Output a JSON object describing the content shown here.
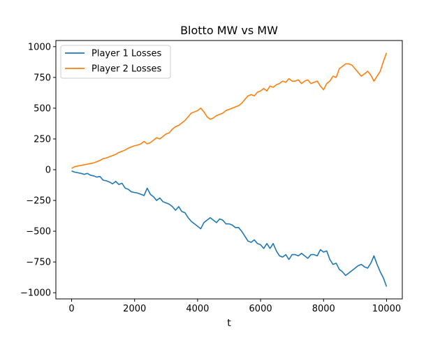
{
  "chart_data": {
    "type": "line",
    "title": "Blotto MW vs MW",
    "xlabel": "t",
    "ylabel": "",
    "xlim": [
      -500,
      10500
    ],
    "ylim": [
      -1050,
      1050
    ],
    "xticks": [
      0,
      2000,
      4000,
      6000,
      8000,
      10000
    ],
    "xtick_labels": [
      "0",
      "2000",
      "4000",
      "6000",
      "8000",
      "10000"
    ],
    "yticks": [
      -1000,
      -750,
      -500,
      -250,
      0,
      250,
      500,
      750,
      1000
    ],
    "ytick_labels": [
      "−1000",
      "−750",
      "−500",
      "−250",
      "0",
      "250",
      "500",
      "750",
      "1000"
    ],
    "grid": false,
    "legend_position": "top-left",
    "series": [
      {
        "name": "Player 1 Losses",
        "color": "#1f77b4",
        "x": [
          0,
          100,
          200,
          300,
          400,
          500,
          600,
          700,
          800,
          900,
          1000,
          1100,
          1200,
          1300,
          1400,
          1500,
          1600,
          1700,
          1800,
          1900,
          2000,
          2100,
          2200,
          2300,
          2400,
          2500,
          2600,
          2700,
          2800,
          2900,
          3000,
          3100,
          3200,
          3300,
          3400,
          3500,
          3600,
          3700,
          3800,
          3900,
          4000,
          4100,
          4200,
          4300,
          4400,
          4500,
          4600,
          4700,
          4800,
          4900,
          5000,
          5100,
          5200,
          5300,
          5400,
          5500,
          5600,
          5700,
          5800,
          5900,
          6000,
          6100,
          6200,
          6300,
          6400,
          6500,
          6600,
          6700,
          6800,
          6900,
          7000,
          7100,
          7200,
          7300,
          7400,
          7500,
          7600,
          7700,
          7800,
          7900,
          8000,
          8100,
          8200,
          8300,
          8400,
          8500,
          8600,
          8700,
          8800,
          8900,
          9000,
          9100,
          9200,
          9300,
          9400,
          9500,
          9600,
          9700,
          9800,
          9900,
          10000
        ],
        "values": [
          -10,
          -20,
          -25,
          -30,
          -38,
          -30,
          -45,
          -50,
          -60,
          -55,
          -85,
          -90,
          -100,
          -115,
          -95,
          -120,
          -110,
          -150,
          -160,
          -180,
          -185,
          -190,
          -200,
          -210,
          -150,
          -200,
          -220,
          -250,
          -230,
          -260,
          -270,
          -280,
          -300,
          -330,
          -300,
          -340,
          -350,
          -390,
          -420,
          -440,
          -460,
          -480,
          -430,
          -410,
          -390,
          -410,
          -430,
          -400,
          -410,
          -440,
          -440,
          -450,
          -470,
          -470,
          -500,
          -540,
          -580,
          -590,
          -570,
          -600,
          -610,
          -640,
          -600,
          -640,
          -600,
          -660,
          -700,
          -710,
          -690,
          -730,
          -690,
          -690,
          -700,
          -680,
          -700,
          -720,
          -690,
          -690,
          -700,
          -650,
          -670,
          -660,
          -730,
          -770,
          -760,
          -810,
          -830,
          -860,
          -840,
          -820,
          -800,
          -780,
          -770,
          -790,
          -800,
          -760,
          -700,
          -770,
          -830,
          -880,
          -950
        ]
      },
      {
        "name": "Player 2 Losses",
        "color": "#ff7f0e",
        "x": [
          0,
          100,
          200,
          300,
          400,
          500,
          600,
          700,
          800,
          900,
          1000,
          1100,
          1200,
          1300,
          1400,
          1500,
          1600,
          1700,
          1800,
          1900,
          2000,
          2100,
          2200,
          2300,
          2400,
          2500,
          2600,
          2700,
          2800,
          2900,
          3000,
          3100,
          3200,
          3300,
          3400,
          3500,
          3600,
          3700,
          3800,
          3900,
          4000,
          4100,
          4200,
          4300,
          4400,
          4500,
          4600,
          4700,
          4800,
          4900,
          5000,
          5100,
          5200,
          5300,
          5400,
          5500,
          5600,
          5700,
          5800,
          5900,
          6000,
          6100,
          6200,
          6300,
          6400,
          6500,
          6600,
          6700,
          6800,
          6900,
          7000,
          7100,
          7200,
          7300,
          7400,
          7500,
          7600,
          7700,
          7800,
          7900,
          8000,
          8100,
          8200,
          8300,
          8400,
          8500,
          8600,
          8700,
          8800,
          8900,
          9000,
          9100,
          9200,
          9300,
          9400,
          9500,
          9600,
          9700,
          9800,
          9900,
          10000
        ],
        "values": [
          10,
          25,
          30,
          35,
          40,
          45,
          50,
          55,
          65,
          75,
          90,
          95,
          105,
          115,
          125,
          140,
          150,
          160,
          175,
          185,
          195,
          200,
          210,
          230,
          210,
          220,
          240,
          260,
          250,
          270,
          290,
          300,
          330,
          350,
          360,
          380,
          400,
          430,
          460,
          470,
          480,
          500,
          470,
          430,
          410,
          420,
          440,
          450,
          460,
          480,
          490,
          500,
          510,
          520,
          540,
          570,
          600,
          610,
          600,
          630,
          640,
          660,
          640,
          680,
          670,
          690,
          700,
          720,
          710,
          740,
          720,
          720,
          730,
          700,
          720,
          730,
          700,
          710,
          720,
          680,
          650,
          700,
          720,
          760,
          750,
          820,
          840,
          860,
          860,
          850,
          820,
          790,
          760,
          780,
          800,
          770,
          720,
          760,
          800,
          880,
          950
        ]
      }
    ]
  }
}
